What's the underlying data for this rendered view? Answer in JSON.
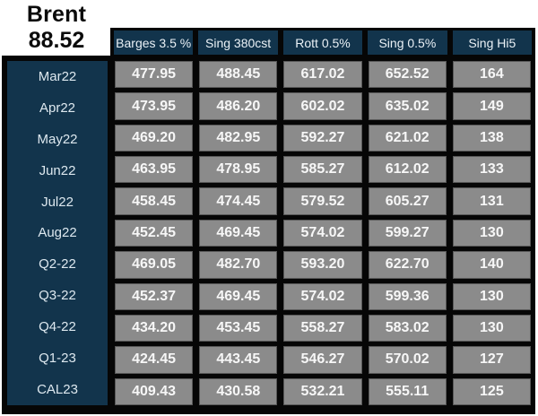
{
  "quote": {
    "title": "Brent",
    "price": "88.52"
  },
  "table": {
    "columns": [
      "Barges 3.5 %",
      "Sing 380cst",
      "Rott 0.5%",
      "Sing 0.5%",
      "Sing Hi5"
    ],
    "rows": [
      {
        "label": "Mar22",
        "values": [
          "477.95",
          "488.45",
          "617.02",
          "652.52",
          "164"
        ]
      },
      {
        "label": "Apr22",
        "values": [
          "473.95",
          "486.20",
          "602.02",
          "635.02",
          "149"
        ]
      },
      {
        "label": "May22",
        "values": [
          "469.20",
          "482.95",
          "592.27",
          "621.02",
          "138"
        ]
      },
      {
        "label": "Jun22",
        "values": [
          "463.95",
          "478.95",
          "585.27",
          "612.02",
          "133"
        ]
      },
      {
        "label": "Jul22",
        "values": [
          "458.45",
          "474.45",
          "579.52",
          "605.27",
          "131"
        ]
      },
      {
        "label": "Aug22",
        "values": [
          "452.45",
          "469.45",
          "574.02",
          "599.27",
          "130"
        ]
      },
      {
        "label": "Q2-22",
        "values": [
          "469.05",
          "482.70",
          "593.20",
          "622.70",
          "140"
        ]
      },
      {
        "label": "Q3-22",
        "values": [
          "452.37",
          "469.45",
          "574.02",
          "599.36",
          "130"
        ]
      },
      {
        "label": "Q4-22",
        "values": [
          "434.20",
          "453.45",
          "558.27",
          "583.02",
          "130"
        ]
      },
      {
        "label": "Q1-23",
        "values": [
          "424.45",
          "443.45",
          "546.27",
          "570.02",
          "127"
        ]
      },
      {
        "label": "CAL23",
        "values": [
          "409.43",
          "430.58",
          "532.21",
          "555.11",
          "125"
        ]
      }
    ]
  },
  "colors": {
    "navy": "#12344c",
    "cell_gray": "#8b8b8b",
    "frame_black": "#060606",
    "text_light": "#eaf1f6"
  }
}
